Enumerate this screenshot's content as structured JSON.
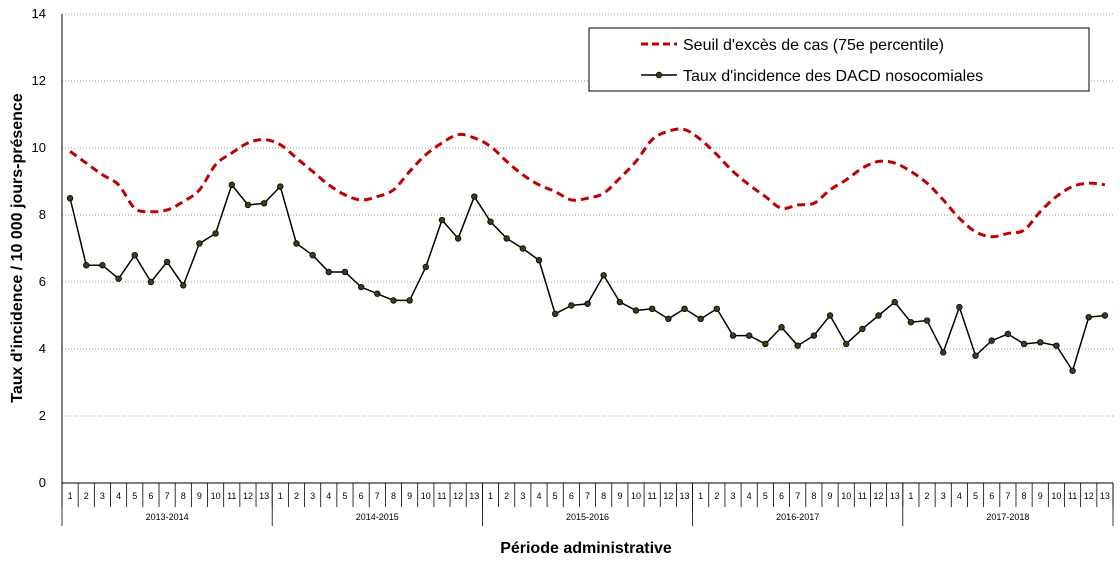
{
  "chart_data": {
    "type": "line",
    "title": "",
    "xlabel": "Période administrative",
    "ylabel": "Taux d'incidence / 10 000 jours-présence",
    "ylim": [
      0,
      14
    ],
    "yticks": [
      "0",
      "2",
      "4",
      "6",
      "8",
      "10",
      "12",
      "14"
    ],
    "grid": "horizontal dotted",
    "legend_position": "top-right",
    "periods": [
      "1",
      "2",
      "3",
      "4",
      "5",
      "6",
      "7",
      "8",
      "9",
      "10",
      "11",
      "12",
      "13"
    ],
    "years": [
      "2013-2014",
      "2014-2015",
      "2015-2016",
      "2016-2017",
      "2017-2018"
    ],
    "series": [
      {
        "name": "Seuil d'excès de cas (75e percentile)",
        "style": "dashed",
        "color": "#c00000",
        "values": [
          9.9,
          9.55,
          9.2,
          8.9,
          8.2,
          8.1,
          8.15,
          8.4,
          8.75,
          9.5,
          9.85,
          10.15,
          10.25,
          10.1,
          9.7,
          9.3,
          8.9,
          8.6,
          8.45,
          8.55,
          8.75,
          9.3,
          9.8,
          10.15,
          10.4,
          10.3,
          10.05,
          9.6,
          9.2,
          8.9,
          8.7,
          8.45,
          8.5,
          8.65,
          9.1,
          9.6,
          10.25,
          10.5,
          10.55,
          10.25,
          9.8,
          9.3,
          8.9,
          8.55,
          8.2,
          8.3,
          8.35,
          8.75,
          9.05,
          9.4,
          9.6,
          9.55,
          9.3,
          8.95,
          8.45,
          7.9,
          7.5,
          7.35,
          7.45,
          7.55,
          8.1,
          8.55,
          8.85,
          8.95,
          8.9
        ]
      },
      {
        "name": "Taux d'incidence des DACD nosocomiales",
        "style": "solid-marker",
        "color": "#000000",
        "marker_color": "#3d3d17",
        "values": [
          8.5,
          6.5,
          6.5,
          6.1,
          6.8,
          6.0,
          6.6,
          5.9,
          7.15,
          7.45,
          8.9,
          8.3,
          8.35,
          8.85,
          7.15,
          6.8,
          6.3,
          6.3,
          5.85,
          5.65,
          5.45,
          5.45,
          6.45,
          7.85,
          7.3,
          8.55,
          7.8,
          7.3,
          7.0,
          6.65,
          5.05,
          5.3,
          5.35,
          6.2,
          5.4,
          5.15,
          5.2,
          4.9,
          5.2,
          4.9,
          5.2,
          4.4,
          4.4,
          4.15,
          4.65,
          4.1,
          4.4,
          5.0,
          4.15,
          4.6,
          5.0,
          5.4,
          4.8,
          4.85,
          3.9,
          5.25,
          3.8,
          4.25,
          4.45,
          4.15,
          4.2,
          4.1,
          3.35,
          4.95,
          5.0
        ]
      }
    ]
  }
}
